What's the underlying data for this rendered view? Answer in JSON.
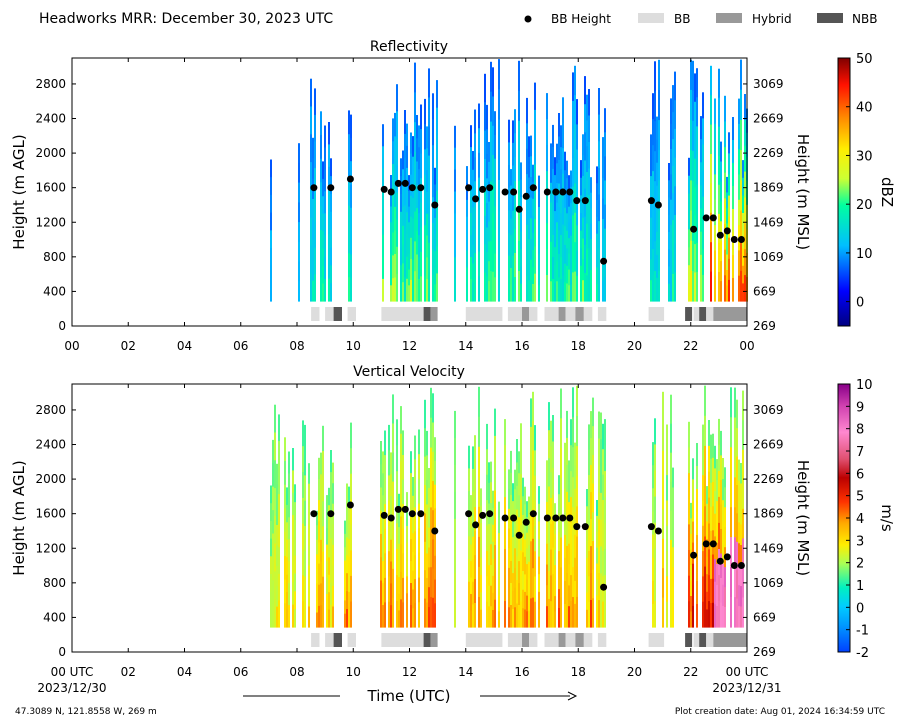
{
  "header": {
    "title": "Headworks MRR:  December 30, 2023 UTC",
    "legend": [
      {
        "label": "BB Height",
        "kind": "dot",
        "color": "#000000"
      },
      {
        "label": "BB",
        "kind": "box",
        "color": "#dddddd"
      },
      {
        "label": "Hybrid",
        "kind": "box",
        "color": "#999999"
      },
      {
        "label": "NBB",
        "kind": "box",
        "color": "#555555"
      }
    ]
  },
  "footer": {
    "coords": "47.3089 N, 121.8558 W, 269 m",
    "created": "Plot creation date: Aug 01, 2024 16:34:59 UTC",
    "xlabel": "Time (UTC)",
    "start_tick": "00 UTC",
    "end_tick": "00 UTC",
    "start_date": "2023/12/30",
    "end_date": "2023/12/31"
  },
  "chart_data": [
    {
      "type": "heatmap",
      "title": "Reflectivity",
      "ylabel": "Height (m AGL)",
      "y2label": "Height (m MSL)",
      "xlim": [
        0,
        24
      ],
      "ylim": [
        0,
        3100
      ],
      "x_ticks": [
        "00",
        "02",
        "04",
        "06",
        "08",
        "10",
        "12",
        "14",
        "16",
        "18",
        "20",
        "22",
        "00"
      ],
      "y_ticks": [
        0,
        400,
        800,
        1200,
        1600,
        2000,
        2400,
        2800
      ],
      "y2_ticks": [
        269,
        669,
        1069,
        1469,
        1869,
        2269,
        2669,
        3069
      ],
      "colorbar": {
        "label": "dBZ",
        "min": -5,
        "max": 50,
        "ticks": [
          0,
          10,
          20,
          30,
          40,
          50
        ]
      },
      "bb_height": [
        [
          8.6,
          1600
        ],
        [
          9.2,
          1600
        ],
        [
          9.9,
          1700
        ],
        [
          11.1,
          1580
        ],
        [
          11.35,
          1550
        ],
        [
          11.6,
          1650
        ],
        [
          11.85,
          1650
        ],
        [
          12.1,
          1600
        ],
        [
          12.4,
          1600
        ],
        [
          12.9,
          1400
        ],
        [
          14.1,
          1600
        ],
        [
          14.35,
          1470
        ],
        [
          14.6,
          1580
        ],
        [
          14.85,
          1600
        ],
        [
          15.4,
          1550
        ],
        [
          15.7,
          1550
        ],
        [
          15.9,
          1350
        ],
        [
          16.15,
          1500
        ],
        [
          16.4,
          1600
        ],
        [
          16.9,
          1550
        ],
        [
          17.2,
          1550
        ],
        [
          17.45,
          1550
        ],
        [
          17.7,
          1550
        ],
        [
          17.95,
          1450
        ],
        [
          18.25,
          1450
        ],
        [
          18.9,
          750
        ],
        [
          20.6,
          1450
        ],
        [
          20.85,
          1400
        ],
        [
          22.1,
          1120
        ],
        [
          22.55,
          1250
        ],
        [
          22.8,
          1250
        ],
        [
          23.05,
          1050
        ],
        [
          23.3,
          1100
        ],
        [
          23.55,
          1000
        ],
        [
          23.8,
          1000
        ]
      ],
      "bb_type": [
        [
          8.5,
          8.8,
          "BB"
        ],
        [
          9.0,
          9.3,
          "BB"
        ],
        [
          9.3,
          9.6,
          "NBB"
        ],
        [
          9.8,
          10.1,
          "BB"
        ],
        [
          11.0,
          12.5,
          "BB"
        ],
        [
          12.5,
          12.75,
          "NBB"
        ],
        [
          12.75,
          13.0,
          "Hybrid"
        ],
        [
          14.0,
          15.3,
          "BB"
        ],
        [
          15.5,
          16.0,
          "BB"
        ],
        [
          16.0,
          16.25,
          "Hybrid"
        ],
        [
          16.25,
          16.55,
          "BB"
        ],
        [
          16.8,
          17.3,
          "BB"
        ],
        [
          17.3,
          17.55,
          "Hybrid"
        ],
        [
          17.55,
          17.9,
          "BB"
        ],
        [
          17.9,
          18.2,
          "Hybrid"
        ],
        [
          18.2,
          18.5,
          "BB"
        ],
        [
          18.7,
          19.0,
          "BB"
        ],
        [
          20.5,
          21.05,
          "BB"
        ],
        [
          21.8,
          22.05,
          "NBB"
        ],
        [
          22.1,
          22.3,
          "BB"
        ],
        [
          22.3,
          22.55,
          "NBB"
        ],
        [
          22.55,
          22.8,
          "BB"
        ],
        [
          22.8,
          24.0,
          "Hybrid"
        ]
      ]
    },
    {
      "type": "heatmap",
      "title": "Vertical Velocity",
      "ylabel": "Height (m AGL)",
      "y2label": "Height (m MSL)",
      "xlim": [
        0,
        24
      ],
      "ylim": [
        0,
        3100
      ],
      "x_ticks": [
        "00",
        "02",
        "04",
        "06",
        "08",
        "10",
        "12",
        "14",
        "16",
        "18",
        "20",
        "22",
        "00"
      ],
      "y_ticks": [
        0,
        400,
        800,
        1200,
        1600,
        2000,
        2400,
        2800
      ],
      "y2_ticks": [
        269,
        669,
        1069,
        1469,
        1869,
        2269,
        2669,
        3069
      ],
      "colorbar": {
        "label": "m/s",
        "min": -2,
        "max": 10,
        "ticks": [
          -2,
          -1,
          0,
          1,
          2,
          3,
          4,
          5,
          6,
          7,
          8,
          9,
          10
        ]
      },
      "bb_height": [
        [
          8.6,
          1600
        ],
        [
          9.2,
          1600
        ],
        [
          9.9,
          1700
        ],
        [
          11.1,
          1580
        ],
        [
          11.35,
          1550
        ],
        [
          11.6,
          1650
        ],
        [
          11.85,
          1650
        ],
        [
          12.1,
          1600
        ],
        [
          12.4,
          1600
        ],
        [
          12.9,
          1400
        ],
        [
          14.1,
          1600
        ],
        [
          14.35,
          1470
        ],
        [
          14.6,
          1580
        ],
        [
          14.85,
          1600
        ],
        [
          15.4,
          1550
        ],
        [
          15.7,
          1550
        ],
        [
          15.9,
          1350
        ],
        [
          16.15,
          1500
        ],
        [
          16.4,
          1600
        ],
        [
          16.9,
          1550
        ],
        [
          17.2,
          1550
        ],
        [
          17.45,
          1550
        ],
        [
          17.7,
          1550
        ],
        [
          17.95,
          1450
        ],
        [
          18.25,
          1450
        ],
        [
          18.9,
          750
        ],
        [
          20.6,
          1450
        ],
        [
          20.85,
          1400
        ],
        [
          22.1,
          1120
        ],
        [
          22.55,
          1250
        ],
        [
          22.8,
          1250
        ],
        [
          23.05,
          1050
        ],
        [
          23.3,
          1100
        ],
        [
          23.55,
          1000
        ],
        [
          23.8,
          1000
        ]
      ],
      "bb_type": [
        [
          8.5,
          8.8,
          "BB"
        ],
        [
          9.0,
          9.3,
          "BB"
        ],
        [
          9.3,
          9.6,
          "NBB"
        ],
        [
          9.8,
          10.1,
          "BB"
        ],
        [
          11.0,
          12.5,
          "BB"
        ],
        [
          12.5,
          12.75,
          "NBB"
        ],
        [
          12.75,
          13.0,
          "Hybrid"
        ],
        [
          14.0,
          15.3,
          "BB"
        ],
        [
          15.5,
          16.0,
          "BB"
        ],
        [
          16.0,
          16.25,
          "Hybrid"
        ],
        [
          16.25,
          16.55,
          "BB"
        ],
        [
          16.8,
          17.3,
          "BB"
        ],
        [
          17.3,
          17.55,
          "Hybrid"
        ],
        [
          17.55,
          17.9,
          "BB"
        ],
        [
          17.9,
          18.2,
          "Hybrid"
        ],
        [
          18.2,
          18.5,
          "BB"
        ],
        [
          18.7,
          19.0,
          "BB"
        ],
        [
          20.5,
          21.05,
          "BB"
        ],
        [
          21.8,
          22.05,
          "NBB"
        ],
        [
          22.1,
          22.3,
          "BB"
        ],
        [
          22.3,
          22.55,
          "NBB"
        ],
        [
          22.55,
          22.8,
          "BB"
        ],
        [
          22.8,
          24.0,
          "Hybrid"
        ]
      ]
    }
  ]
}
